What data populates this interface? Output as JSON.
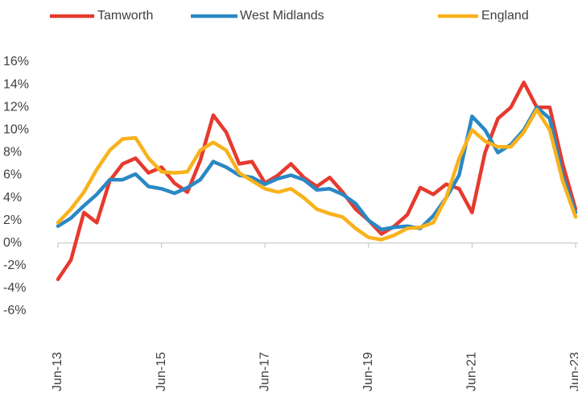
{
  "chart_data": {
    "type": "line",
    "categories": [
      "Jun-13",
      null,
      null,
      null,
      null,
      null,
      null,
      null,
      "Jun-15",
      null,
      null,
      null,
      null,
      null,
      null,
      null,
      "Jun-17",
      null,
      null,
      null,
      null,
      null,
      null,
      null,
      "Jun-19",
      null,
      null,
      null,
      null,
      null,
      null,
      null,
      "Jun-21",
      null,
      null,
      null,
      null,
      null,
      null,
      null,
      "Jun-23"
    ],
    "series": [
      {
        "name": "Tamworth",
        "color": "#e63a2e",
        "values": [
          -3.2,
          -1.5,
          2.7,
          1.8,
          5.5,
          7,
          7.5,
          6.2,
          6.7,
          5.3,
          4.5,
          7.3,
          11.3,
          9.8,
          7,
          7.2,
          5.3,
          6,
          7,
          5.8,
          5,
          5.8,
          4.5,
          3,
          2,
          0.8,
          1.5,
          2.5,
          4.9,
          4.3,
          5.2,
          4.8,
          2.7,
          8,
          11,
          12,
          14.2,
          12,
          12,
          7,
          3
        ]
      },
      {
        "name": "West Midlands",
        "color": "#2a88c4",
        "values": [
          1.5,
          2.2,
          3.3,
          4.3,
          5.6,
          5.6,
          6.1,
          5,
          4.8,
          4.4,
          4.9,
          5.6,
          7.2,
          6.7,
          6,
          5.8,
          5.2,
          5.7,
          6,
          5.6,
          4.7,
          4.8,
          4.3,
          3.5,
          2,
          1.2,
          1.4,
          1.5,
          1.3,
          2.4,
          4,
          6,
          11.2,
          10,
          8,
          8.7,
          10,
          12,
          11,
          6,
          2.7
        ]
      },
      {
        "name": "England",
        "color": "#f9b21c",
        "values": [
          1.8,
          3,
          4.5,
          6.5,
          8.2,
          9.2,
          9.3,
          7.5,
          6.3,
          6.2,
          6.3,
          8.2,
          8.9,
          8.2,
          6.2,
          5.5,
          4.8,
          4.5,
          4.8,
          4,
          3,
          2.6,
          2.3,
          1.3,
          0.5,
          0.3,
          0.7,
          1.3,
          1.4,
          1.8,
          4,
          7.5,
          10,
          9,
          8.5,
          8.5,
          9.8,
          11.8,
          10,
          5.5,
          2.3
        ]
      }
    ],
    "ylim": [
      -6,
      16
    ],
    "yticks": [
      {
        "value": -6,
        "label": "-6%"
      },
      {
        "value": -4,
        "label": "-4%"
      },
      {
        "value": -2,
        "label": "-2%"
      },
      {
        "value": 0,
        "label": "0%"
      },
      {
        "value": 2,
        "label": "2%"
      },
      {
        "value": 4,
        "label": "4%"
      },
      {
        "value": 6,
        "label": "6%"
      },
      {
        "value": 8,
        "label": "8%"
      },
      {
        "value": 10,
        "label": "10%"
      },
      {
        "value": 12,
        "label": "12%"
      },
      {
        "value": 14,
        "label": "14%"
      },
      {
        "value": 16,
        "label": "16%"
      }
    ],
    "grid": false,
    "legend": "top"
  }
}
